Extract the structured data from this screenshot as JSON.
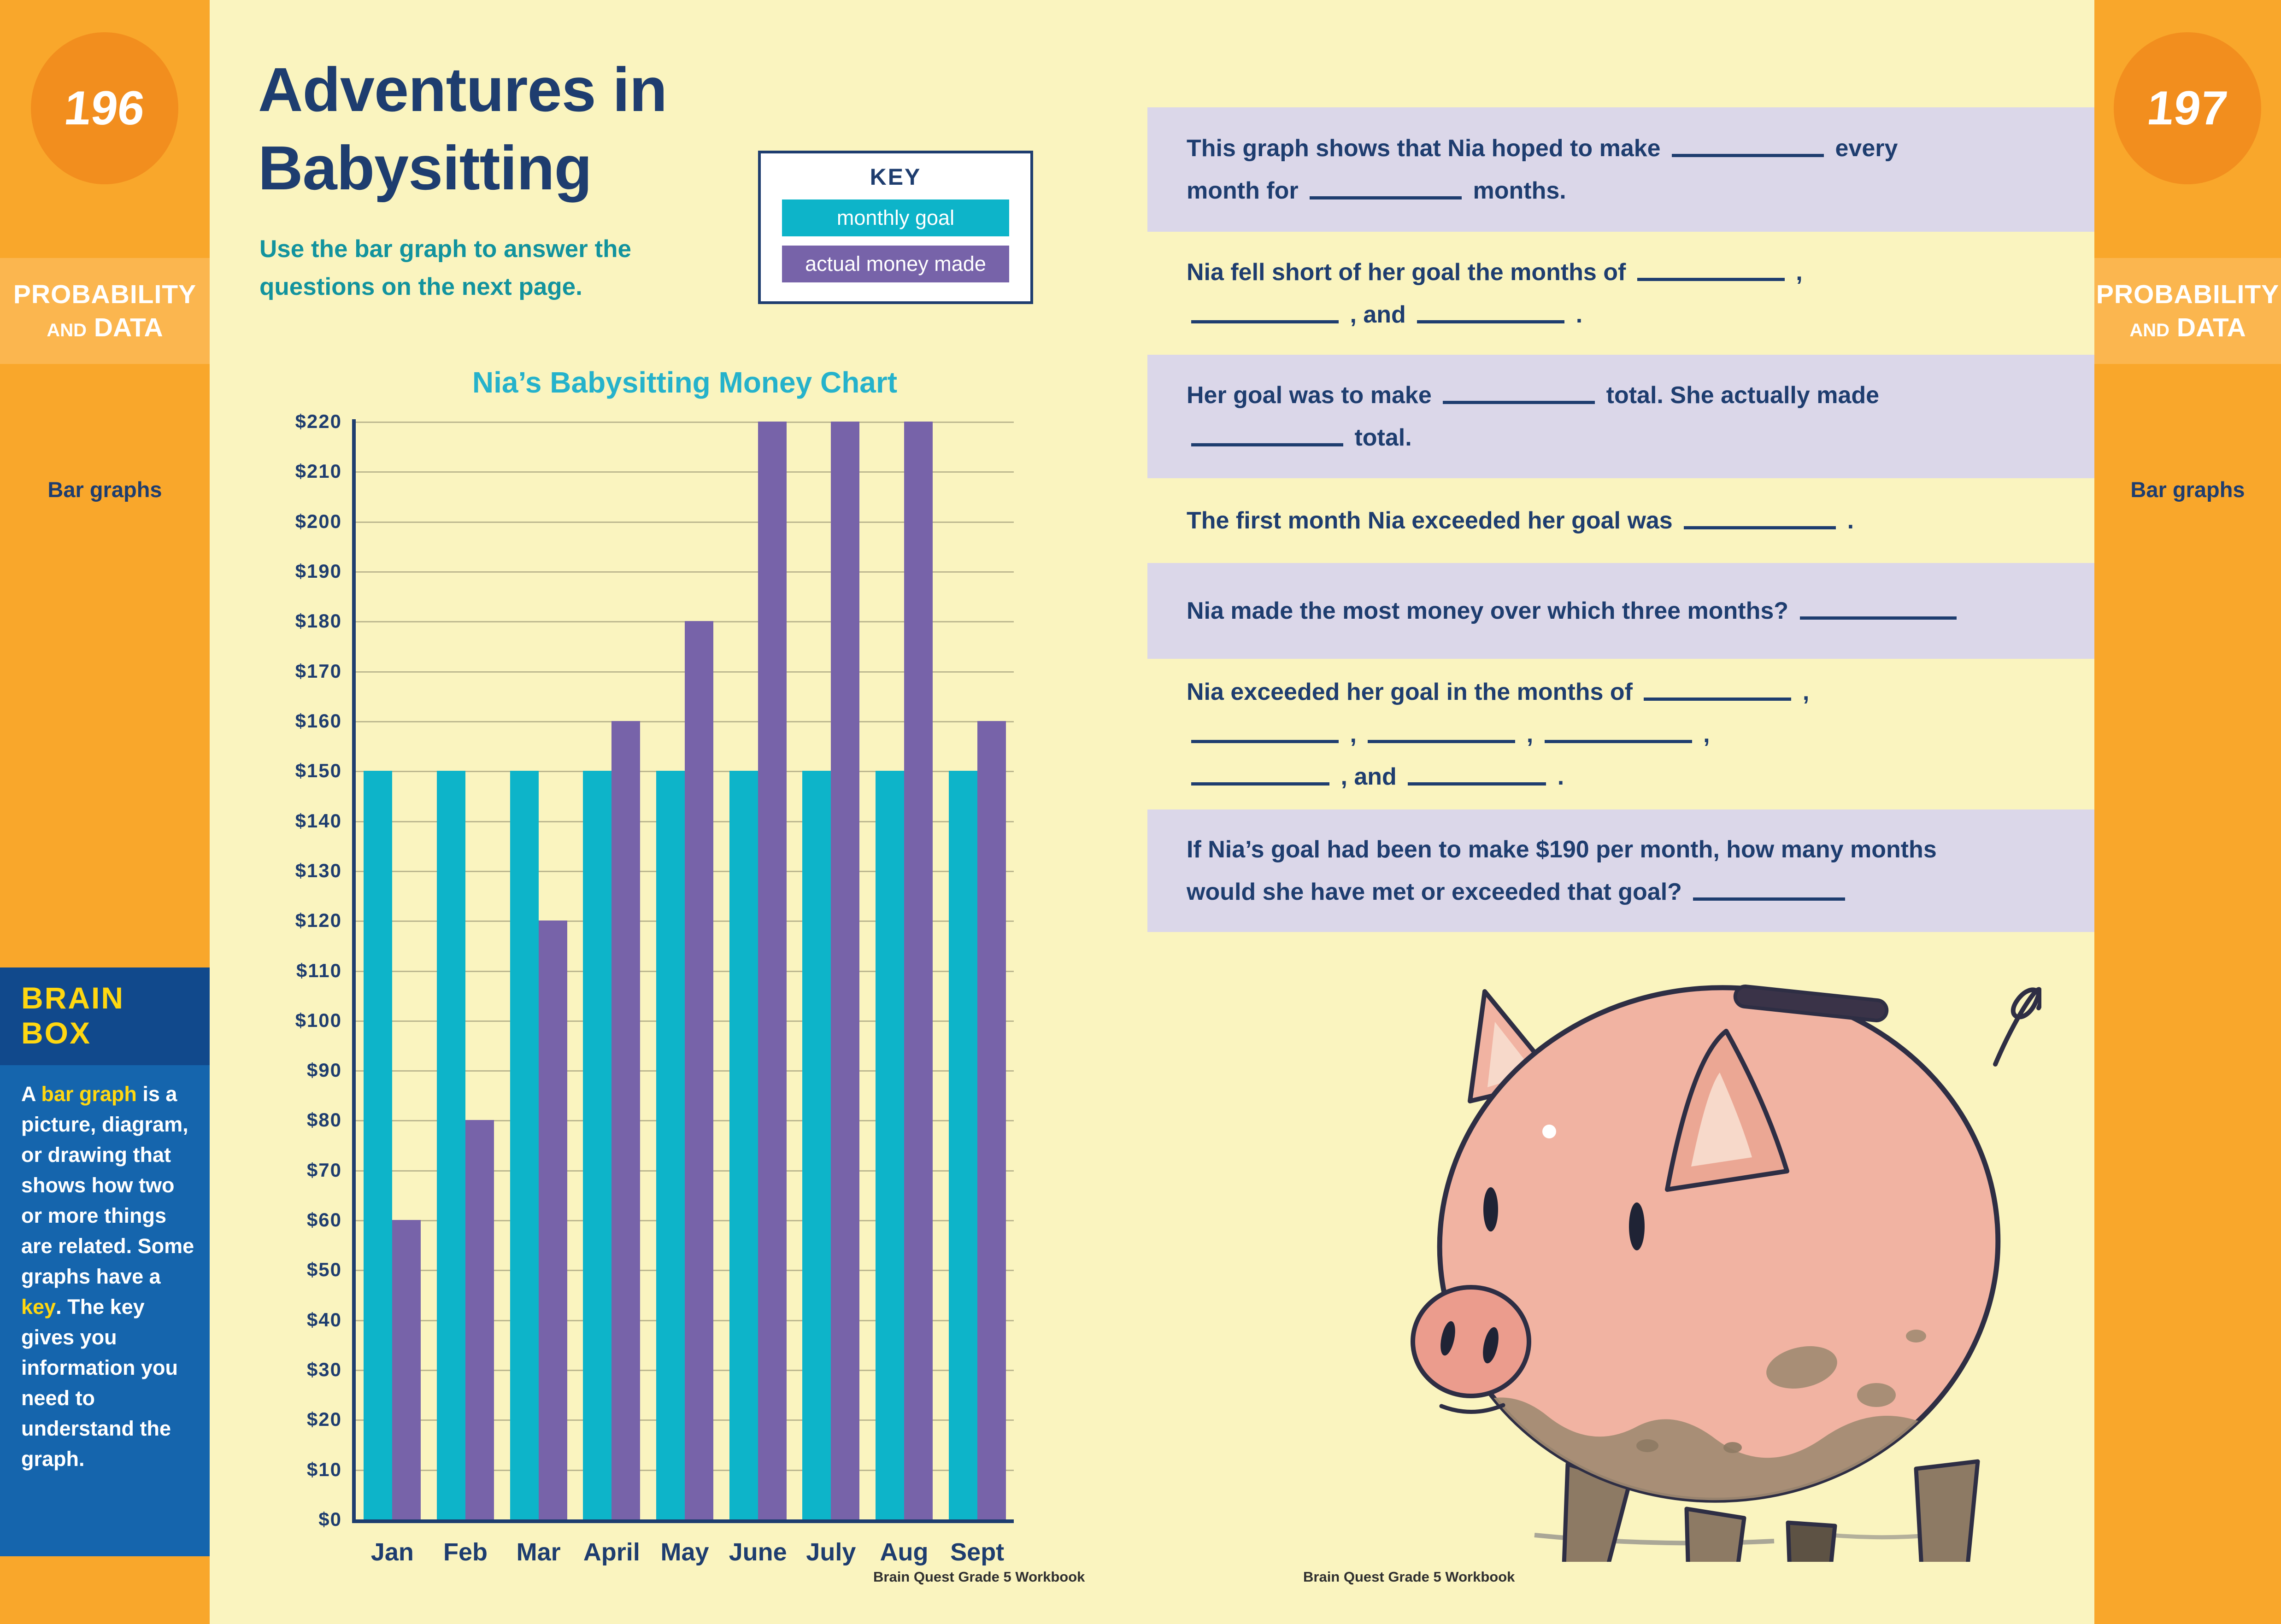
{
  "page": {
    "left_page_number": "196",
    "right_page_number": "197",
    "section_line1": "PROBABILITY",
    "section_and": "AND",
    "section_line2": "DATA",
    "topic_label": "Bar graphs",
    "footer": "Brain Quest Grade 5 Workbook"
  },
  "lesson": {
    "title_line1": "Adventures in",
    "title_line2": "Babysitting",
    "subtitle_segments": [
      {
        "t": "Use the "
      },
      {
        "bold": "bar graph"
      },
      {
        "t": " to answer the"
      },
      {
        "br": true
      },
      {
        "t": "questions on the next page."
      }
    ]
  },
  "key": {
    "title": "KEY",
    "items": [
      {
        "label": "monthly goal",
        "color": "#0db4c9"
      },
      {
        "label": "actual money made",
        "color": "#7763a9"
      }
    ]
  },
  "chart_data": {
    "type": "bar",
    "title": "Nia’s Babysitting Money Chart",
    "categories": [
      "Jan",
      "Feb",
      "Mar",
      "April",
      "May",
      "June",
      "July",
      "Aug",
      "Sept"
    ],
    "series": [
      {
        "name": "monthly goal",
        "color": "#0db4c9",
        "values": [
          150,
          150,
          150,
          150,
          150,
          150,
          150,
          150,
          150
        ]
      },
      {
        "name": "actual money made",
        "color": "#7763a9",
        "values": [
          60,
          80,
          120,
          160,
          180,
          220,
          220,
          220,
          160
        ]
      }
    ],
    "xlabel": "",
    "ylabel": "",
    "ylim": [
      0,
      220
    ],
    "ytick_step": 10,
    "ytick_prefix": "$",
    "grid": true,
    "legend_position": "key box, top of left page"
  },
  "questions": [
    {
      "bg": "lavender",
      "segments": [
        {
          "t": "This graph shows that Nia hoped to make "
        },
        {
          "blank": 330
        },
        {
          "t": " every"
        },
        {
          "br": true
        },
        {
          "t": "month for "
        },
        {
          "blank": 330
        },
        {
          "t": " months."
        }
      ]
    },
    {
      "bg": "yellow",
      "segments": [
        {
          "t": "Nia fell short of her goal the months of "
        },
        {
          "blank": 320
        },
        {
          "t": " ,"
        },
        {
          "br": true
        },
        {
          "blank": 320
        },
        {
          "t": " , and "
        },
        {
          "blank": 320
        },
        {
          "t": " ."
        }
      ]
    },
    {
      "bg": "lavender",
      "segments": [
        {
          "t": "Her goal was to make "
        },
        {
          "blank": 330
        },
        {
          "t": " total. She actually made"
        },
        {
          "br": true
        },
        {
          "blank": 330
        },
        {
          "t": " total."
        }
      ]
    },
    {
      "bg": "yellow",
      "segments": [
        {
          "t": "The first month Nia exceeded her goal was "
        },
        {
          "blank": 330
        },
        {
          "t": " ."
        }
      ]
    },
    {
      "bg": "lavender",
      "segments": [
        {
          "t": "Nia made the most money over which three months? "
        },
        {
          "blank": 340
        }
      ]
    },
    {
      "bg": "yellow",
      "segments": [
        {
          "t": "Nia exceeded her goal in the months of "
        },
        {
          "blank": 320
        },
        {
          "t": " ,"
        },
        {
          "br": true
        },
        {
          "blank": 320
        },
        {
          "t": " , "
        },
        {
          "blank": 320
        },
        {
          "t": " , "
        },
        {
          "blank": 320
        },
        {
          "t": " ,"
        },
        {
          "br": true
        },
        {
          "blank": 300
        },
        {
          "t": " , and "
        },
        {
          "blank": 300
        },
        {
          "t": " ."
        }
      ]
    },
    {
      "bg": "lavender",
      "segments": [
        {
          "t": "If Nia’s goal had been to make $190 per month, how many months"
        },
        {
          "br": true
        },
        {
          "t": "would she have met or exceeded that goal? "
        },
        {
          "blank": 330
        }
      ]
    }
  ],
  "brain_box": {
    "title_line1": "BRAIN",
    "title_line2": "BOX",
    "segments": [
      {
        "t": "A "
      },
      {
        "hl": "bar graph"
      },
      {
        "t": " is a picture, diagram, or drawing that shows how two or more things are related. Some graphs have a "
      },
      {
        "hl": "key"
      },
      {
        "t": ". The key gives you information you need to understand the graph."
      }
    ]
  },
  "colors": {
    "page_background": "#faf4bf",
    "lavender_band": "#dbd7e9",
    "sidebar_orange": "#f9a72b",
    "badge_orange": "#f28e1e",
    "band_orange": "#fbb64f",
    "navy_text": "#1e3d6f",
    "teal_bar": "#0db4c9",
    "purple_bar": "#7763a9",
    "subtitle_teal": "#12939e",
    "chart_title_cyan": "#25b2cb",
    "brainbox_header_blue": "#11498c",
    "brainbox_body_blue": "#1565ad",
    "brainbox_yellow": "#ffd711",
    "gridline": "#bcb78f"
  }
}
